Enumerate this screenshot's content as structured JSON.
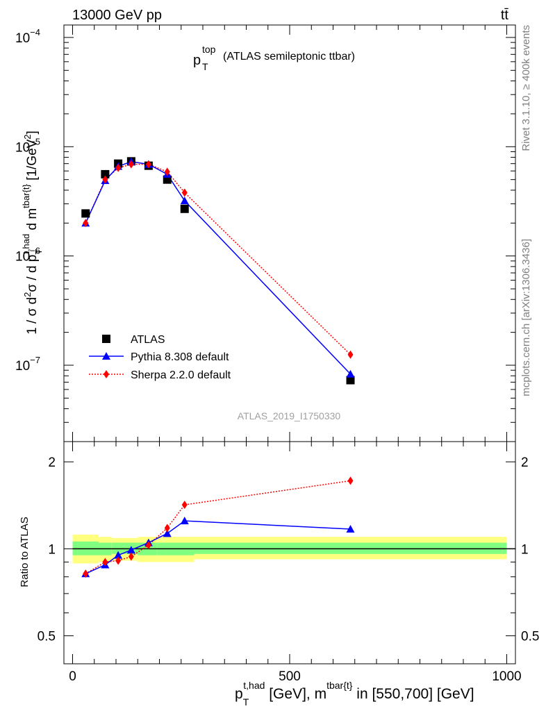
{
  "header": {
    "left": "13000 GeV pp",
    "right": "tt̄"
  },
  "side": {
    "rivet": "Rivet 3.1.10, ≥ 400k events",
    "mcplots": "mcplots.cern.ch [arXiv:1306.3436]"
  },
  "watermark": "ATLAS_2019_I1750330",
  "title": {
    "main": "p",
    "sup": "top",
    "sub": "T",
    "rest": "(ATLAS semileptonic ttbar)"
  },
  "ylabel_top": "1 / σ d²σ / d p_T^{t,had} d m^{tbar{t}} [1/GeV²]",
  "ylabel_bottom": "Ratio to ATLAS",
  "xlabel": "p_T^{t,had} [GeV], m^{tbar{t}} in [550,700] [GeV]",
  "colors": {
    "atlas": "#000000",
    "pythia": "#0000ff",
    "sherpa": "#ff0000",
    "band_outer": "#ffff80",
    "band_inner": "#80ff80"
  },
  "chart_data": [
    {
      "type": "scatter",
      "panel": "main",
      "xlim": [
        -20,
        1020
      ],
      "ylim": [
        2e-08,
        0.00013
      ],
      "yscale": "log",
      "y_ticks": [
        "10^{-7}",
        "10^{-6}",
        "10^{-5}",
        "10^{-4}"
      ],
      "x_ticks": [
        0,
        500,
        1000
      ],
      "legend_position": "middle-left",
      "series": [
        {
          "name": "ATLAS",
          "marker": "square",
          "x": [
            30,
            75,
            105,
            135,
            175,
            218,
            258,
            640
          ],
          "y": [
            2.45e-06,
            5.6e-06,
            7e-06,
            7.35e-06,
            6.7e-06,
            5e-06,
            2.7e-06,
            7.3e-08
          ]
        },
        {
          "name": "Pythia 8.308 default",
          "marker": "triangle",
          "x": [
            30,
            75,
            105,
            135,
            175,
            218,
            258,
            640
          ],
          "y": [
            2e-06,
            4.9e-06,
            6.6e-06,
            7.3e-06,
            6.9e-06,
            5.6e-06,
            3.2e-06,
            8.3e-08
          ]
        },
        {
          "name": "Sherpa 2.2.0 default",
          "marker": "diamond",
          "x": [
            30,
            75,
            105,
            135,
            175,
            218,
            258,
            640
          ],
          "y": [
            2e-06,
            5e-06,
            6.4e-06,
            6.9e-06,
            6.9e-06,
            5.9e-06,
            3.8e-06,
            1.25e-07
          ]
        }
      ]
    },
    {
      "type": "line",
      "panel": "ratio",
      "xlim": [
        -20,
        1020
      ],
      "ylim": [
        0.4,
        2.35
      ],
      "yscale": "log",
      "y_ticks": [
        0.5,
        1,
        2
      ],
      "x_ticks": [
        0,
        500,
        1000
      ],
      "band_edges": [
        0,
        60,
        90,
        120,
        150,
        195,
        240,
        280,
        1000
      ],
      "band_outer": {
        "lo": [
          0.89,
          0.9,
          0.91,
          0.91,
          0.9,
          0.9,
          0.9,
          0.92
        ],
        "hi": [
          1.12,
          1.1,
          1.09,
          1.09,
          1.1,
          1.1,
          1.1,
          1.1
        ]
      },
      "band_inner": {
        "lo": [
          0.95,
          0.95,
          0.96,
          0.96,
          0.95,
          0.95,
          0.95,
          0.96
        ],
        "hi": [
          1.06,
          1.05,
          1.05,
          1.05,
          1.05,
          1.05,
          1.05,
          1.05
        ]
      },
      "series": [
        {
          "name": "Pythia 8.308 default",
          "x": [
            30,
            75,
            105,
            135,
            175,
            218,
            258,
            640
          ],
          "y": [
            0.82,
            0.88,
            0.95,
            0.99,
            1.05,
            1.13,
            1.25,
            1.17
          ]
        },
        {
          "name": "Sherpa 2.2.0 default",
          "x": [
            30,
            75,
            105,
            135,
            175,
            218,
            258,
            640
          ],
          "y": [
            0.82,
            0.9,
            0.91,
            0.94,
            1.03,
            1.18,
            1.42,
            1.72
          ]
        }
      ]
    }
  ]
}
